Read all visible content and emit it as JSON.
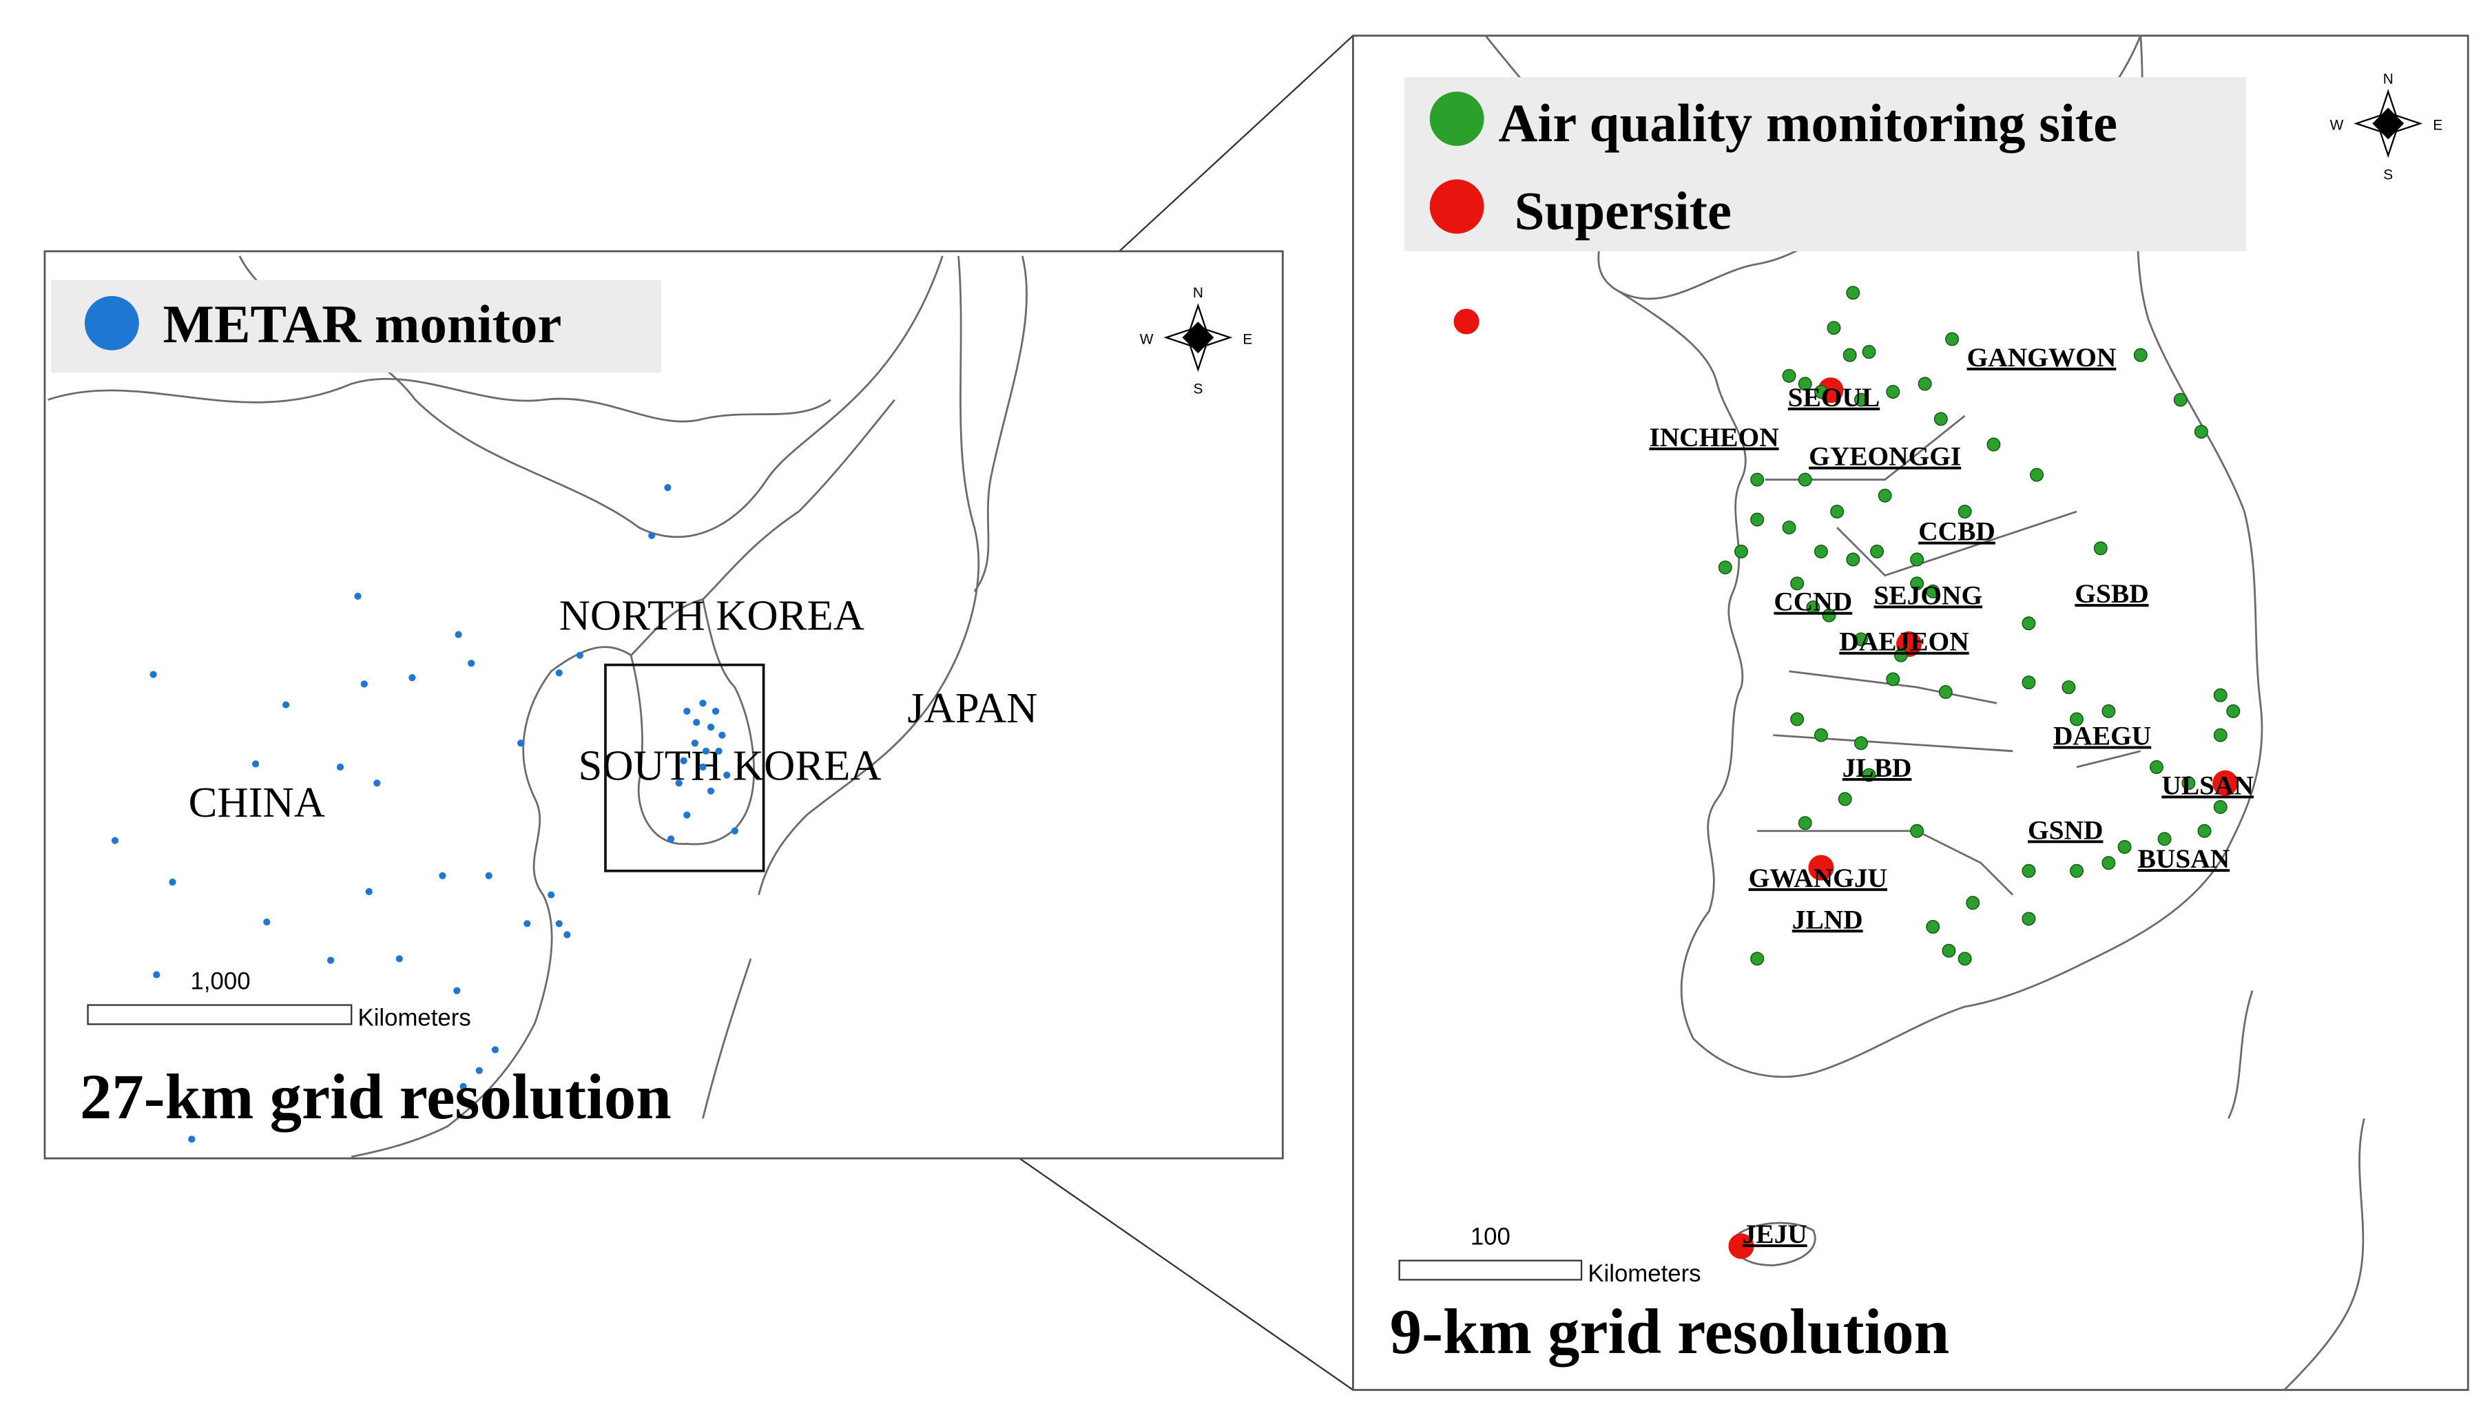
{
  "left_panel": {
    "legend": "METAR monitor",
    "countries": [
      "NORTH KOREA",
      "SOUTH KOREA",
      "JAPAN",
      "CHINA"
    ],
    "scale_bar": {
      "distance": "1,000",
      "unit": "Kilometers"
    },
    "compass": [
      "N",
      "W",
      "E",
      "S"
    ],
    "caption": "27-km grid resolution"
  },
  "right_panel": {
    "legend": [
      "Air quality monitoring site",
      "Supersite"
    ],
    "regions": [
      "GANGWON",
      "SEOUL",
      "INCHEON",
      "GYEONGGI",
      "CCBD",
      "CCND",
      "SEJONG",
      "GSBD",
      "DAEJEON",
      "DAEGU",
      "ULSAN",
      "JLBD",
      "GSND",
      "BUSAN",
      "GWANGJU",
      "JLND",
      "JEJU"
    ],
    "scale_bar": {
      "distance": "100",
      "unit": "Kilometers"
    },
    "compass": [
      "N",
      "W",
      "E",
      "S"
    ],
    "caption": "9-km grid resolution"
  }
}
